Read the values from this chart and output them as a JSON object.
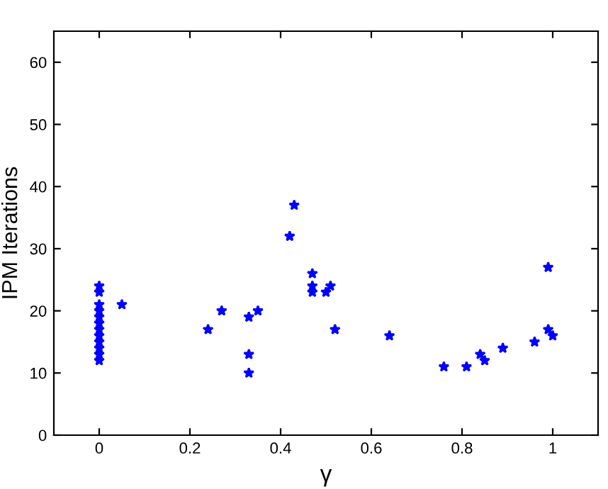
{
  "chart_data": {
    "type": "scatter",
    "xlabel": "γ",
    "ylabel": "IPM Iterations",
    "xlim": [
      -0.1,
      1.1
    ],
    "xticks": [
      0,
      0.2,
      0.4,
      0.6,
      0.8,
      1
    ],
    "ylim": [
      0,
      65
    ],
    "yticks": [
      0,
      10,
      20,
      30,
      40,
      50,
      60
    ],
    "grid": false,
    "marker": "star",
    "series": [
      {
        "color": "#0000ff",
        "x": [
          0,
          0,
          0,
          0,
          0,
          0,
          0,
          0,
          0,
          0,
          0,
          0,
          0.05,
          0.24,
          0.27,
          0.33,
          0.33,
          0.33,
          0.35,
          0.42,
          0.43,
          0.47,
          0.47,
          0.47,
          0.5,
          0.51,
          0.52,
          0.64,
          0.76,
          0.81,
          0.84,
          0.85,
          0.89,
          0.96,
          0.99,
          0.99,
          1.0
        ],
        "values": [
          12,
          13,
          14,
          15,
          16,
          17,
          18,
          19,
          20,
          21,
          23,
          24,
          21,
          17,
          20,
          19,
          13,
          10,
          20,
          32,
          37,
          26,
          24,
          23,
          23,
          24,
          17,
          16,
          11,
          11,
          13,
          12,
          14,
          15,
          27,
          17,
          16
        ]
      }
    ]
  }
}
